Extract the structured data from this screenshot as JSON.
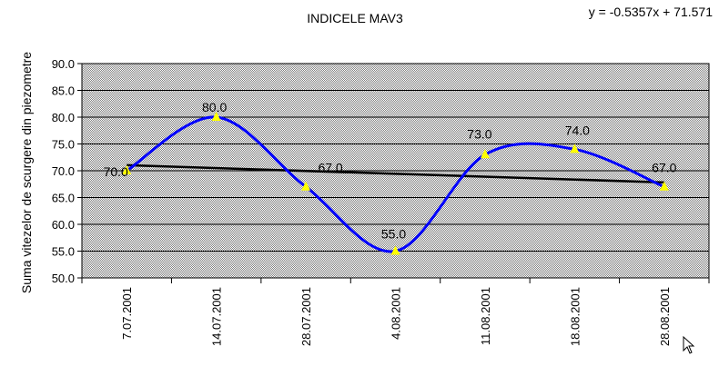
{
  "chart_data": {
    "type": "line",
    "title": "INDICELE MAV3",
    "trendline_equation": "y = -0.5357x + 71.571",
    "ylabel": "Suma vitezelor de scurgere din piezometre",
    "xlabel": "",
    "categories": [
      "7.07.2001",
      "14.07.2001",
      "28.07.2001",
      "4.08.2001",
      "11.08.2001",
      "18.08.2001",
      "28.08.2001"
    ],
    "series": [
      {
        "values": [
          70.0,
          80.0,
          67.0,
          55.0,
          73.0,
          74.0,
          67.0
        ],
        "data_labels": [
          "70.0",
          "80.0",
          "67.0",
          "55.0",
          "73.0",
          "74.0",
          "67.0"
        ],
        "color": "#0000ff",
        "marker": "triangle",
        "marker_color": "#ffff00",
        "smoothed": true
      }
    ],
    "trendline": {
      "slope": -0.5357,
      "intercept": 71.571,
      "color": "#000000"
    },
    "ylim": [
      50.0,
      90.0
    ],
    "ytick_step": 5,
    "yticks": [
      "90.0",
      "85.0",
      "80.0",
      "75.0",
      "70.0",
      "65.0",
      "60.0",
      "55.0",
      "50.0"
    ],
    "grid": true,
    "plot_background": "#c0c0c0",
    "legend": "none"
  }
}
